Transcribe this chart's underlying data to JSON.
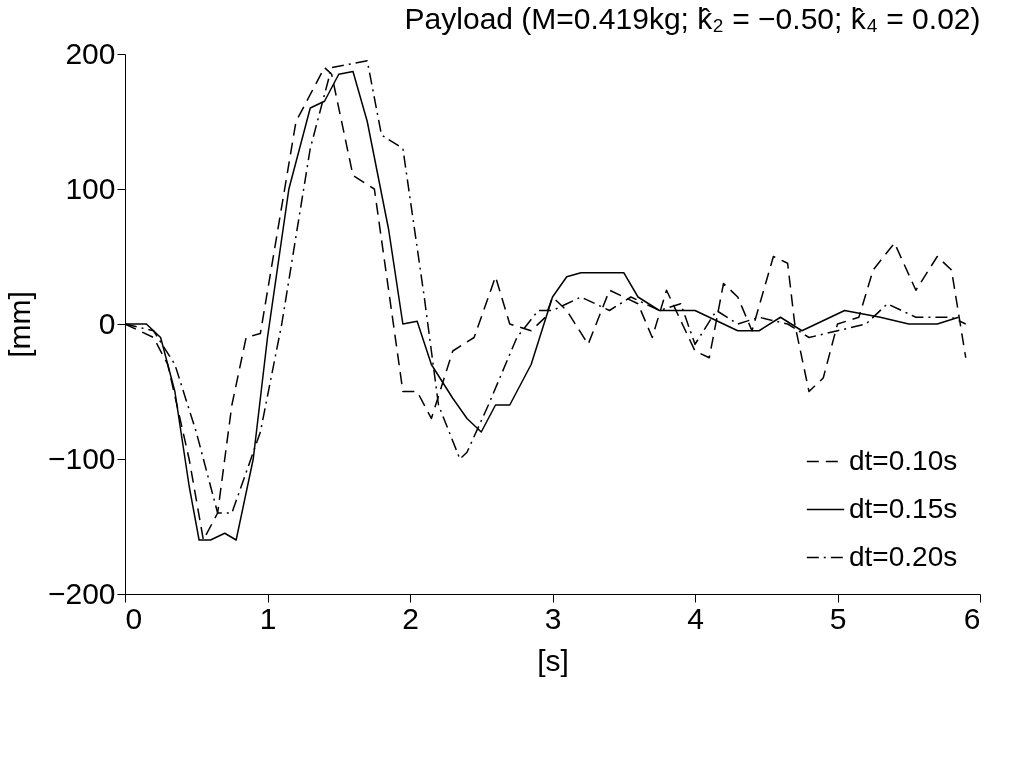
{
  "chart_data": {
    "type": "line",
    "title": "Payload (M=0.419kg;  k̂₂ = −0.50;  k̂₄ = 0.02)",
    "xlabel": "[s]",
    "ylabel": "[mm]",
    "xlim": [
      0,
      6
    ],
    "ylim": [
      -200,
      200
    ],
    "xticks": [
      0,
      1,
      2,
      3,
      4,
      5,
      6
    ],
    "yticks": [
      -200,
      -100,
      0,
      100,
      200
    ],
    "grid": false,
    "legend": "bottom right",
    "marker": "none",
    "series": [
      {
        "name": "dt=0.10s",
        "color": "#000000",
        "line_style": "dashed",
        "x": [
          0,
          0.2,
          0.3,
          0.45,
          0.55,
          0.65,
          0.75,
          0.85,
          0.95,
          1.2,
          1.4,
          1.45,
          1.6,
          1.75,
          1.95,
          2.05,
          2.15,
          2.3,
          2.45,
          2.6,
          2.7,
          2.85,
          2.95,
          3.0,
          3.1,
          3.25,
          3.4,
          3.6,
          3.7,
          3.8,
          4.0,
          4.1,
          4.2,
          4.3,
          4.4,
          4.55,
          4.65,
          4.7,
          4.8,
          4.9,
          5.0,
          5.15,
          5.25,
          5.4,
          5.55,
          5.7,
          5.8,
          5.9
        ],
        "values": [
          0,
          -10,
          -30,
          -100,
          -160,
          -140,
          -60,
          -10,
          -7,
          150,
          190,
          185,
          110,
          100,
          -50,
          -50,
          -70,
          -20,
          -10,
          35,
          0,
          -5,
          5,
          20,
          10,
          -15,
          25,
          15,
          -10,
          25,
          -20,
          -25,
          30,
          20,
          -5,
          50,
          45,
          0,
          -50,
          -40,
          0,
          5,
          40,
          60,
          25,
          50,
          40,
          -25
        ]
      },
      {
        "name": "dt=0.15s",
        "color": "#000000",
        "line_style": "solid",
        "x": [
          0,
          0.15,
          0.25,
          0.35,
          0.45,
          0.52,
          0.6,
          0.7,
          0.78,
          0.9,
          1.0,
          1.15,
          1.3,
          1.4,
          1.5,
          1.6,
          1.7,
          1.85,
          1.95,
          2.05,
          2.15,
          2.3,
          2.4,
          2.5,
          2.6,
          2.7,
          2.85,
          3.0,
          3.1,
          3.2,
          3.5,
          3.6,
          3.75,
          4.0,
          4.1,
          4.3,
          4.45,
          4.6,
          4.75,
          4.85,
          5.05,
          5.3,
          5.5,
          5.7,
          5.85
        ],
        "values": [
          0,
          0,
          -10,
          -50,
          -120,
          -160,
          -160,
          -155,
          -160,
          -100,
          -10,
          100,
          160,
          165,
          185,
          187,
          150,
          70,
          0,
          2,
          -30,
          -55,
          -70,
          -80,
          -60,
          -60,
          -30,
          20,
          35,
          38,
          38,
          20,
          10,
          10,
          5,
          -5,
          -5,
          5,
          -5,
          0,
          10,
          5,
          0,
          0,
          5
        ]
      },
      {
        "name": "dt=0.20s",
        "color": "#000000",
        "line_style": "dashdot",
        "x": [
          0,
          0.2,
          0.35,
          0.5,
          0.65,
          0.75,
          0.85,
          0.95,
          1.1,
          1.3,
          1.45,
          1.7,
          1.8,
          1.95,
          2.1,
          2.2,
          2.35,
          2.4,
          2.55,
          2.75,
          2.9,
          3.0,
          3.2,
          3.4,
          3.55,
          3.75,
          3.9,
          4.0,
          4.15,
          4.3,
          4.45,
          4.65,
          4.8,
          5.0,
          5.2,
          5.35,
          5.55,
          5.8,
          5.9
        ],
        "values": [
          0,
          -5,
          -30,
          -80,
          -140,
          -140,
          -110,
          -80,
          0,
          130,
          190,
          195,
          140,
          130,
          20,
          -60,
          -100,
          -95,
          -60,
          -10,
          10,
          10,
          20,
          10,
          20,
          10,
          15,
          -15,
          10,
          0,
          5,
          0,
          -10,
          -5,
          0,
          15,
          5,
          5,
          0
        ]
      }
    ]
  }
}
